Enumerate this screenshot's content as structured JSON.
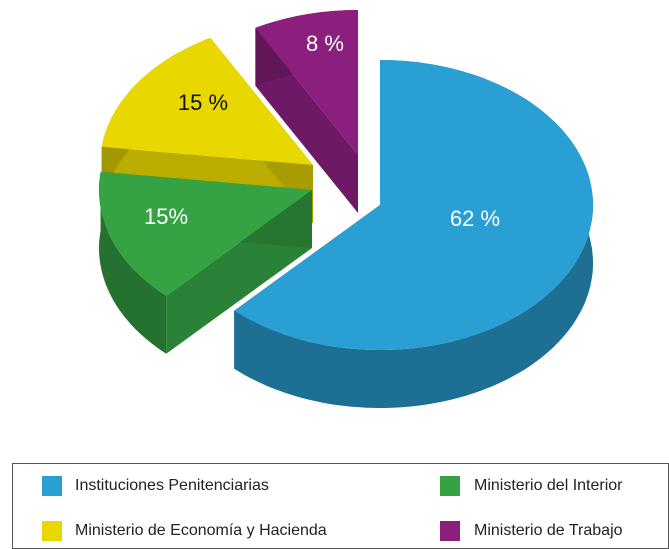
{
  "chart_data": {
    "type": "pie",
    "categories": [
      "Instituciones Penitenciarias",
      "Ministerio del Interior",
      "Ministerio de Economía y Hacienda",
      "Ministerio de Trabajo"
    ],
    "values": [
      62,
      15,
      15,
      8
    ],
    "value_labels": [
      "62 %",
      "15%",
      "15 %",
      "8 %"
    ],
    "colors": [
      "#2a9fd3",
      "#35a244",
      "#e8d800",
      "#8a1f7e"
    ],
    "legend": "bottom"
  }
}
